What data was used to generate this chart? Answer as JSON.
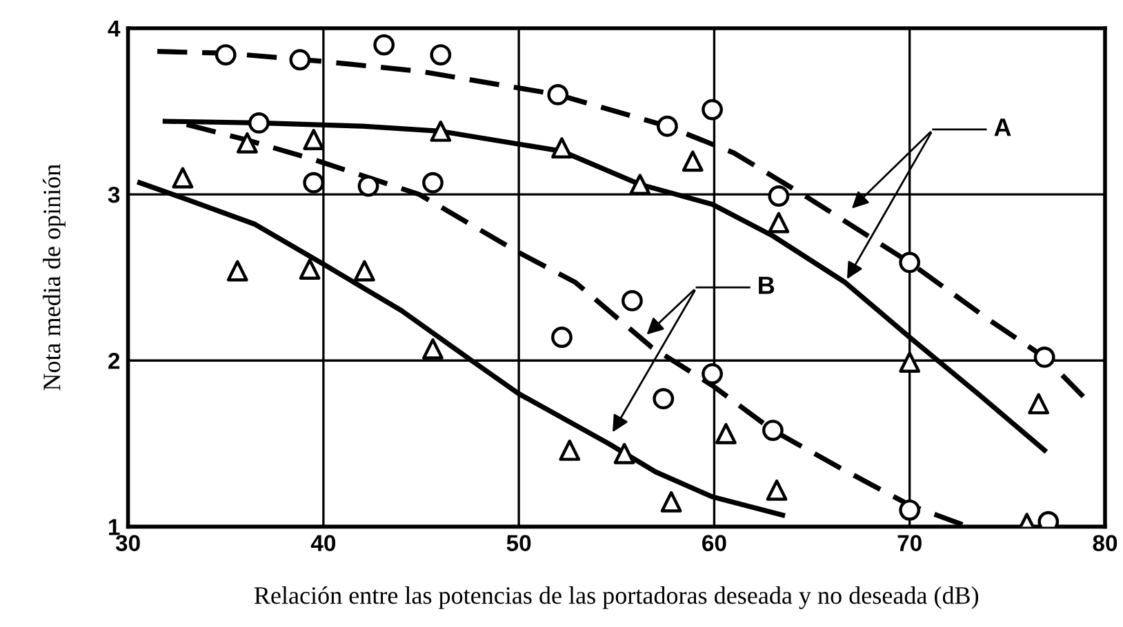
{
  "chart_data": {
    "type": "scatter",
    "xlabel": "Relación entre las potencias de las portadoras deseada y no deseada (dB)",
    "ylabel": "Nota media de opinión",
    "xlim": [
      30,
      80
    ],
    "ylim": [
      1,
      4
    ],
    "xticks": [
      30,
      40,
      50,
      60,
      70,
      80
    ],
    "yticks": [
      1,
      2,
      3,
      4
    ],
    "grid": true,
    "series": [
      {
        "marker": "circle",
        "color": "#000000",
        "x": [
          35.0,
          38.8,
          43.1,
          46.0,
          52.0,
          57.6,
          59.9,
          63.3,
          70.0,
          76.9,
          36.7,
          39.5,
          42.3,
          45.6,
          52.2,
          55.8,
          57.4,
          59.9,
          63.0,
          70.0,
          77.1
        ],
        "values": [
          3.84,
          3.81,
          3.9,
          3.84,
          3.6,
          3.41,
          3.51,
          2.99,
          2.59,
          2.02,
          3.43,
          3.07,
          3.05,
          3.07,
          2.14,
          2.36,
          1.77,
          1.92,
          1.58,
          1.1,
          1.03
        ]
      },
      {
        "marker": "triangle",
        "color": "#000000",
        "x": [
          32.8,
          36.1,
          39.5,
          46.0,
          52.2,
          56.2,
          58.9,
          63.3,
          35.6,
          39.3,
          42.1,
          45.6,
          52.6,
          55.4,
          57.8,
          60.6,
          63.2,
          70.0,
          76.6,
          76.0
        ],
        "values": [
          3.1,
          3.31,
          3.33,
          3.38,
          3.28,
          3.06,
          3.2,
          2.83,
          2.54,
          2.55,
          2.54,
          2.07,
          1.46,
          1.44,
          1.15,
          1.56,
          1.22,
          1.99,
          1.74,
          1.02
        ]
      },
      {
        "type": "line",
        "line_style": "dashed",
        "color": "#000000",
        "x": [
          31.5,
          35,
          40,
          45,
          52,
          57.6,
          61,
          64.8,
          70,
          74,
          76.9,
          79
        ],
        "values": [
          3.86,
          3.85,
          3.8,
          3.74,
          3.6,
          3.41,
          3.25,
          2.98,
          2.59,
          2.25,
          2.02,
          1.77
        ]
      },
      {
        "type": "line",
        "line_style": "solid",
        "color": "#000000",
        "x": [
          31.9,
          36.7,
          42,
          46,
          52.2,
          56.2,
          59.9,
          63,
          66.7,
          70,
          73.5,
          76.9
        ],
        "values": [
          3.44,
          3.43,
          3.41,
          3.38,
          3.26,
          3.06,
          2.94,
          2.75,
          2.47,
          2.14,
          1.8,
          1.46
        ]
      },
      {
        "type": "line",
        "line_style": "dashed",
        "color": "#000000",
        "x": [
          33,
          36,
          39.5,
          44.9,
          50,
          52.9,
          56.8,
          59.9,
          63,
          66.5,
          70,
          73
        ],
        "values": [
          3.42,
          3.33,
          3.21,
          3.0,
          2.65,
          2.47,
          2.08,
          1.85,
          1.58,
          1.35,
          1.13,
          1.0
        ]
      },
      {
        "type": "line",
        "line_style": "solid",
        "color": "#000000",
        "x": [
          30.6,
          33,
          36.5,
          40,
          44,
          47.7,
          50,
          54.6,
          57,
          59.9,
          63.5
        ],
        "values": [
          3.07,
          2.97,
          2.82,
          2.58,
          2.3,
          1.99,
          1.8,
          1.5,
          1.33,
          1.18,
          1.07
        ]
      }
    ],
    "annotations": [
      "A",
      "B"
    ]
  }
}
